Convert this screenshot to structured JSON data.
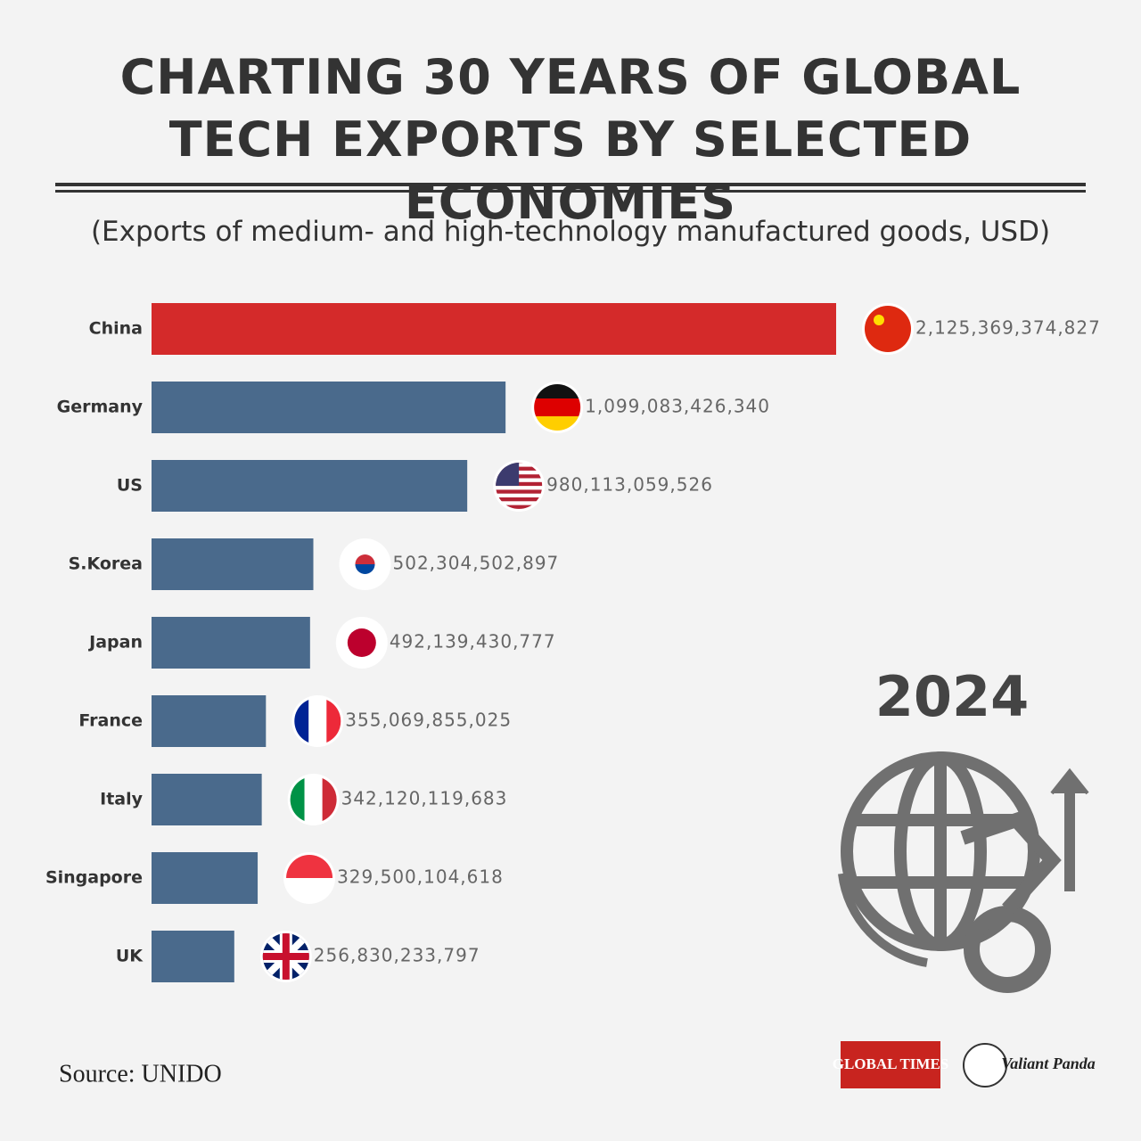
{
  "chart_data": {
    "type": "hbar",
    "title": "CHARTING 30 YEARS OF GLOBAL TECH EXPORTS BY SELECTED ECONOMIES",
    "subtitle": "(Exports of medium- and high-technology manufactured goods, USD)",
    "categories": [
      "China",
      "Germany",
      "US",
      "S.Korea",
      "Japan",
      "France",
      "Italy",
      "Singapore",
      "UK"
    ],
    "values": [
      2125369374827,
      1099083426340,
      980113059526,
      502304502897,
      492139430777,
      355069855025,
      342120119683,
      329500104618,
      256830233797
    ],
    "value_labels": [
      "2,125,369,374,827",
      "1,099,083,426,340",
      "980,113,059,526",
      "502,304,502,897",
      "492,139,430,777",
      "355,069,855,025",
      "342,120,119,683",
      "329,500,104,618",
      "256,830,233,797"
    ],
    "colors": [
      "#d42a2a",
      "#4a6a8c",
      "#4a6a8c",
      "#4a6a8c",
      "#4a6a8c",
      "#4a6a8c",
      "#4a6a8c",
      "#4a6a8c",
      "#4a6a8c"
    ],
    "year": "2024",
    "source": "Source: UNIDO",
    "logos": [
      "GLOBAL TIMES",
      "Valiant Panda"
    ]
  }
}
